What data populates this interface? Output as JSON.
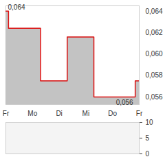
{
  "chart_data": [
    {
      "type": "area",
      "line_style": "step",
      "color": "#dd1111",
      "x": [
        0,
        0.1,
        1.3,
        2.3,
        3.3,
        4.85,
        5
      ],
      "values": [
        0.064,
        0.0624,
        0.0575,
        0.0616,
        0.056,
        0.0575,
        0.0575
      ],
      "xlim": [
        0,
        5
      ],
      "xticks": [
        {
          "value": 0,
          "label": "Fr"
        },
        {
          "value": 1,
          "label": "Mo"
        },
        {
          "value": 2,
          "label": "Di"
        },
        {
          "value": 3,
          "label": "Mi"
        },
        {
          "value": 4,
          "label": "Do"
        },
        {
          "value": 5,
          "label": "Fr"
        }
      ],
      "ylim": [
        0.0553,
        0.0645
      ],
      "yticks": [
        {
          "value": 0.056,
          "label": "0,056"
        },
        {
          "value": 0.058,
          "label": "0,058"
        },
        {
          "value": 0.06,
          "label": "0,060"
        },
        {
          "value": 0.062,
          "label": "0,062"
        },
        {
          "value": 0.064,
          "label": "0,064"
        }
      ],
      "annotations": [
        {
          "text": "0,064",
          "x": 0,
          "y": 0.064
        },
        {
          "text": "0,056",
          "x": 4.85,
          "y": 0.056
        }
      ],
      "grid": false
    },
    {
      "type": "bar",
      "color": "#999999",
      "categories": [
        "Fr",
        "Mo",
        "Di",
        "Mi",
        "Do",
        "Fr"
      ],
      "values": [
        0,
        0,
        0,
        0,
        0,
        0
      ],
      "ylim": [
        0,
        10
      ],
      "yticks": [
        0,
        5,
        10
      ],
      "tick_labels": "y",
      "grid": false
    }
  ]
}
